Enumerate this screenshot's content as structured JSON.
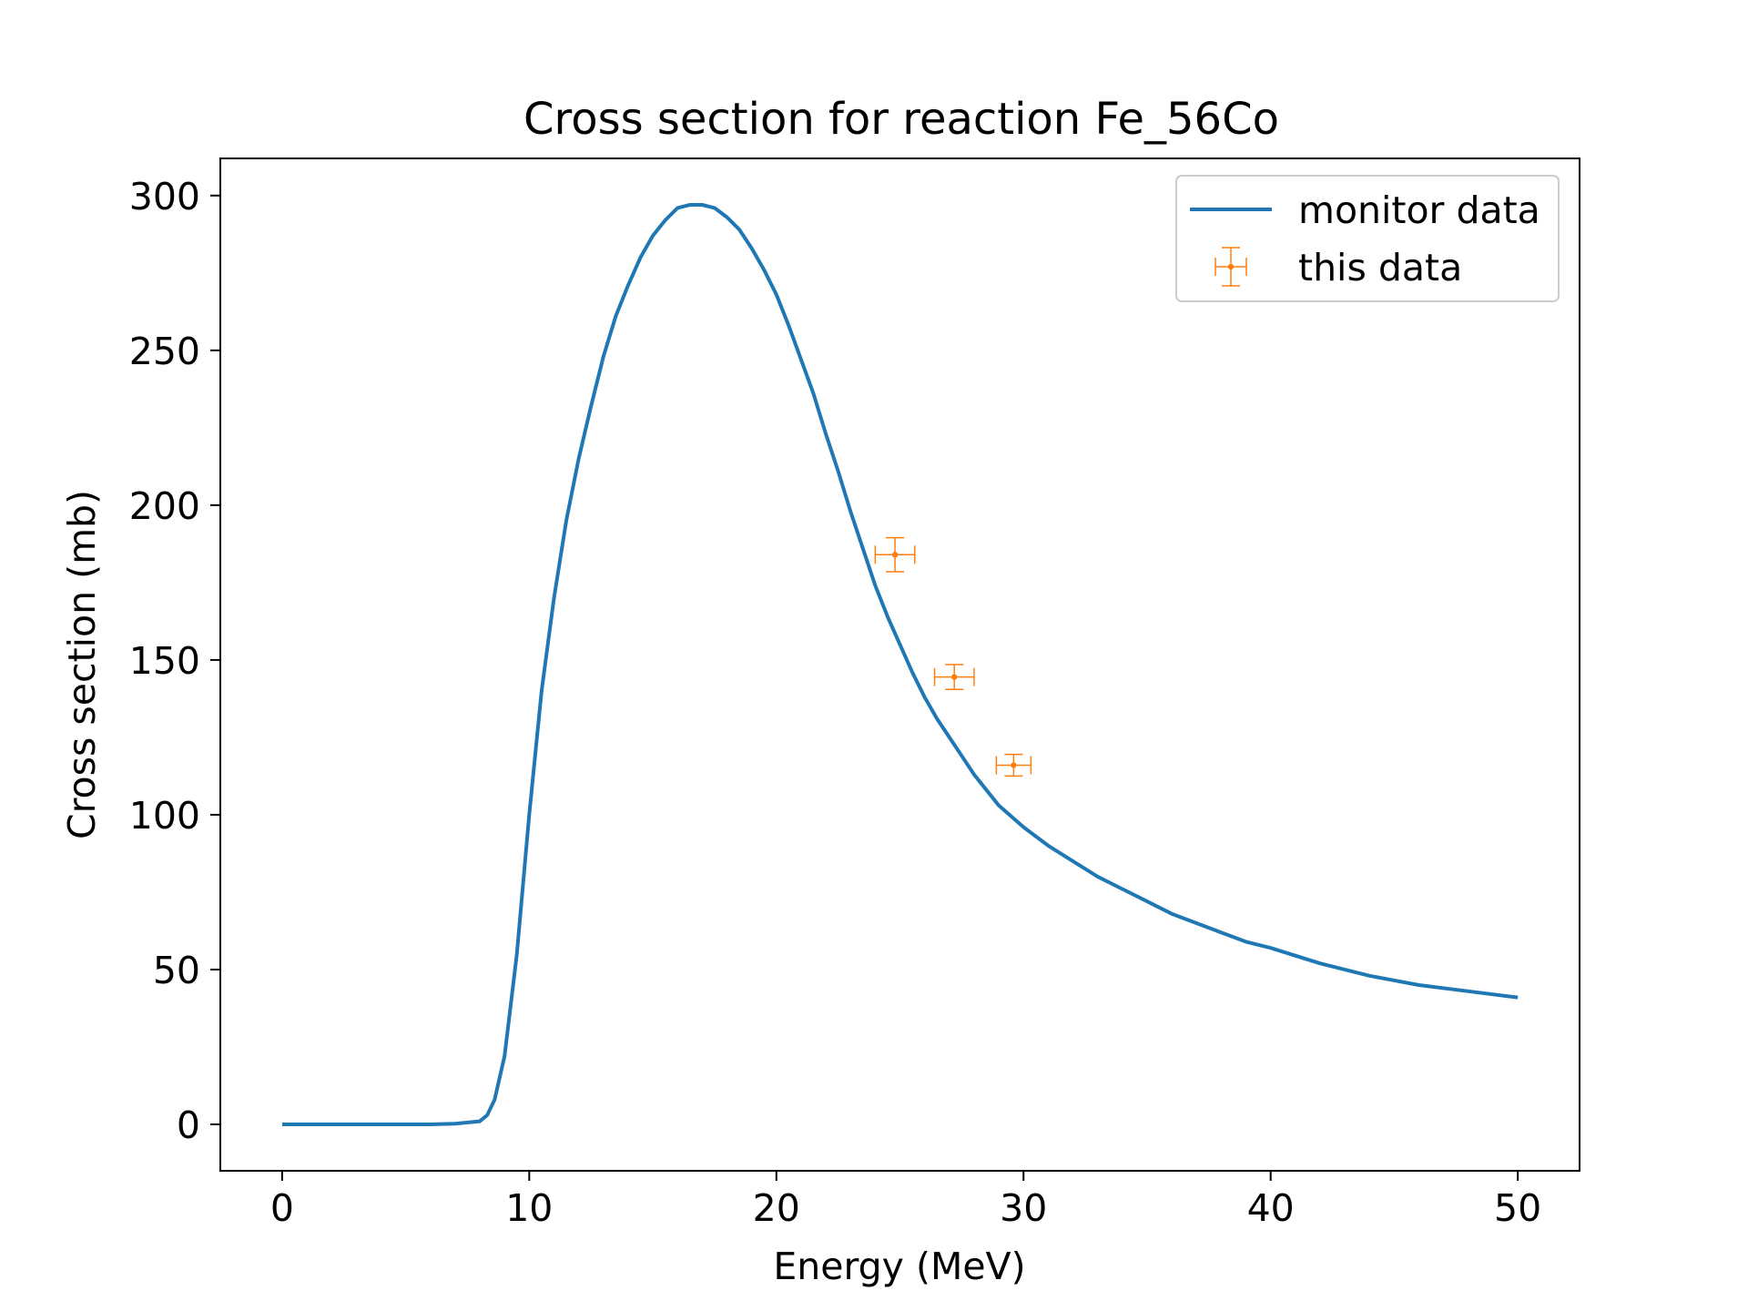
{
  "chart_data": {
    "type": "line",
    "title": "Cross section for reaction Fe_56Co",
    "xlabel": "Energy (MeV)",
    "ylabel": "Cross section (mb)",
    "xlim": [
      -2.5,
      52.5
    ],
    "ylim": [
      -15,
      312
    ],
    "xticks": [
      0,
      10,
      20,
      30,
      40,
      50
    ],
    "yticks": [
      0,
      50,
      100,
      150,
      200,
      250,
      300
    ],
    "xtick_labels": [
      "0",
      "10",
      "20",
      "30",
      "40",
      "50"
    ],
    "ytick_labels": [
      "0",
      "50",
      "100",
      "150",
      "200",
      "250",
      "300"
    ],
    "grid": false,
    "legend_position": "top-right",
    "legend": [
      "monitor data",
      "this data"
    ],
    "series": [
      {
        "name": "monitor data",
        "kind": "line",
        "color": "#1f77b4",
        "x": [
          0,
          2,
          4,
          6,
          7,
          8,
          8.3,
          8.6,
          9,
          9.5,
          10,
          10.5,
          11,
          11.5,
          12,
          12.5,
          13,
          13.5,
          14,
          14.5,
          15,
          15.5,
          16,
          16.5,
          17,
          17.5,
          18,
          18.5,
          19,
          19.5,
          20,
          20.5,
          21,
          21.5,
          22,
          22.5,
          23,
          23.5,
          24,
          24.5,
          25,
          25.5,
          26,
          26.5,
          27,
          27.5,
          28,
          28.5,
          29,
          30,
          31,
          32,
          33,
          34,
          35,
          36,
          37,
          38,
          39,
          40,
          42,
          44,
          46,
          48,
          50
        ],
        "y": [
          0,
          0,
          0,
          0,
          0.2,
          1,
          3,
          8,
          22,
          55,
          100,
          140,
          170,
          195,
          215,
          232,
          248,
          261,
          271,
          280,
          287,
          292,
          296,
          297,
          297,
          296,
          293,
          289,
          283,
          276,
          268,
          258,
          247,
          236,
          223,
          211,
          198,
          186,
          174,
          164,
          155,
          146,
          138,
          131,
          125,
          119,
          113,
          108,
          103,
          96,
          90,
          85,
          80,
          76,
          72,
          68,
          65,
          62,
          59,
          57,
          52,
          48,
          45,
          43,
          41
        ]
      },
      {
        "name": "this data",
        "kind": "errorbar",
        "color": "#ff7f0e",
        "x": [
          24.8,
          27.2,
          29.6
        ],
        "y": [
          184,
          144.5,
          116
        ],
        "xerr": [
          0.8,
          0.8,
          0.7
        ],
        "yerr": [
          5.5,
          4,
          3.5
        ]
      }
    ]
  }
}
